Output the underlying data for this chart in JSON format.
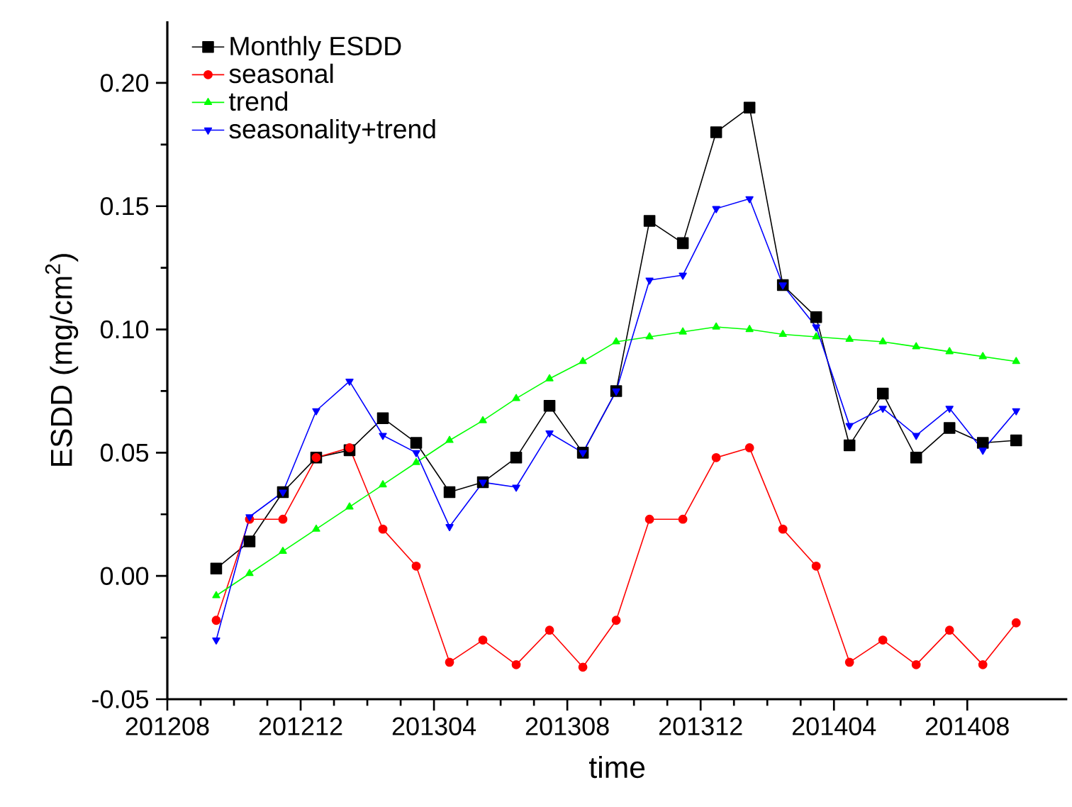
{
  "chart_data": {
    "type": "line",
    "xlabel": "time",
    "ylabel": "ESDD (mg/cm$^{2}$)",
    "x": [
      "2012-09-15",
      "2012-10-15",
      "2012-11-15",
      "2012-12-15",
      "2013-01-15",
      "2013-02-15",
      "2013-03-15",
      "2013-04-15",
      "2013-05-15",
      "2013-06-15",
      "2013-07-15",
      "2013-08-15",
      "2013-09-15",
      "2013-10-15",
      "2013-11-15",
      "2013-12-15",
      "2014-01-15",
      "2014-02-15",
      "2014-03-15",
      "2014-04-15",
      "2014-05-15",
      "2014-06-15",
      "2014-07-15",
      "2014-08-15",
      "2014-09-15"
    ],
    "series": [
      {
        "name": "Monthly ESDD",
        "color": "#000000",
        "marker": "square",
        "values": [
          0.003,
          0.014,
          0.034,
          0.048,
          0.051,
          0.064,
          0.054,
          0.034,
          0.038,
          0.048,
          0.069,
          0.05,
          0.075,
          0.144,
          0.135,
          0.18,
          0.19,
          0.118,
          0.105,
          0.053,
          0.074,
          0.048,
          0.06,
          0.054,
          0.055
        ]
      },
      {
        "name": "seasonal",
        "color": "#ff0000",
        "marker": "circle",
        "values": [
          -0.018,
          0.023,
          0.023,
          0.048,
          0.052,
          0.019,
          0.004,
          -0.035,
          -0.026,
          -0.036,
          -0.022,
          -0.037,
          -0.018,
          0.023,
          0.023,
          0.048,
          0.052,
          0.019,
          0.004,
          -0.035,
          -0.026,
          -0.036,
          -0.022,
          -0.036,
          -0.019
        ]
      },
      {
        "name": "trend",
        "color": "#00ff00",
        "marker": "triangle",
        "values": [
          -0.008,
          0.001,
          0.01,
          0.019,
          0.028,
          0.037,
          0.046,
          0.055,
          0.063,
          0.072,
          0.08,
          0.087,
          0.095,
          0.097,
          0.099,
          0.101,
          0.1,
          0.098,
          0.097,
          0.096,
          0.095,
          0.093,
          0.091,
          0.089,
          0.087
        ]
      },
      {
        "name": "seasonality+trend",
        "color": "#0000ff",
        "marker": "triangle-down",
        "values": [
          -0.026,
          0.024,
          0.034,
          0.067,
          0.079,
          0.057,
          0.05,
          0.02,
          0.038,
          0.036,
          0.058,
          0.05,
          0.075,
          0.12,
          0.122,
          0.149,
          0.153,
          0.118,
          0.101,
          0.061,
          0.068,
          0.057,
          0.068,
          0.051,
          0.067
        ]
      }
    ],
    "xlim": [
      "2012-08-01",
      "2014-11-01"
    ],
    "xticks": [
      {
        "value": "2012-08-01",
        "label": "201208"
      },
      {
        "value": "2012-12-01",
        "label": "201212"
      },
      {
        "value": "2013-04-01",
        "label": "201304"
      },
      {
        "value": "2013-08-01",
        "label": "201308"
      },
      {
        "value": "2013-12-01",
        "label": "201312"
      },
      {
        "value": "2014-04-01",
        "label": "201404"
      },
      {
        "value": "2014-08-01",
        "label": "201408"
      }
    ],
    "ylim": [
      -0.05,
      0.225
    ],
    "yticks": [
      -0.05,
      {
        "value": 0.0,
        "label": "0.00"
      },
      0.05,
      {
        "value": 0.1,
        "label": "0.10"
      },
      0.15,
      {
        "value": 0.2,
        "label": "0.20"
      }
    ],
    "legend": "top left",
    "grid": false,
    "line_style": "solid"
  }
}
